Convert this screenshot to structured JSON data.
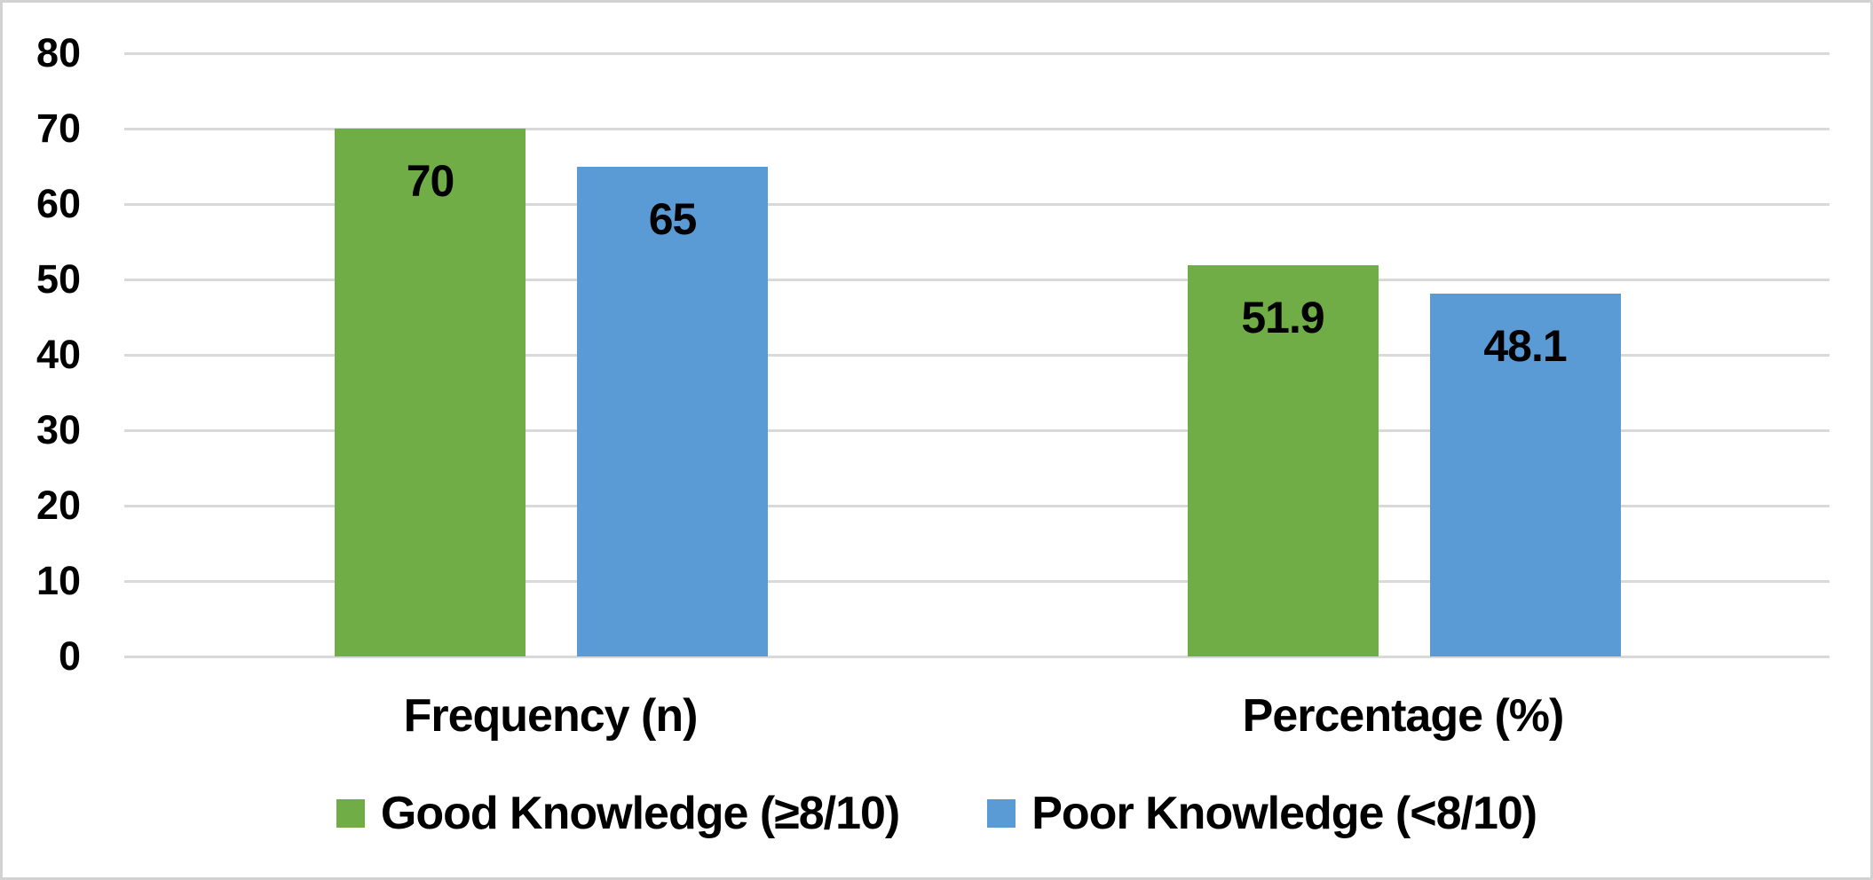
{
  "chart_data": {
    "type": "bar",
    "title": "",
    "categories": [
      "Frequency (n)",
      "Percentage (%)"
    ],
    "series": [
      {
        "name": "Good Knowledge (≥8/10)",
        "color": "#70AD47",
        "values": [
          70,
          51.9
        ]
      },
      {
        "name": "Poor Knowledge (<8/10)",
        "color": "#5B9BD5",
        "values": [
          65,
          48.1
        ]
      }
    ],
    "yticks": [
      0,
      10,
      20,
      30,
      40,
      50,
      60,
      70,
      80
    ],
    "ylim": [
      0,
      80
    ],
    "grid": true,
    "gridline_color": "#D9D9D9",
    "frame_color": "#D2D2D2",
    "label_color": "#000000",
    "legend_position": "bottom"
  }
}
